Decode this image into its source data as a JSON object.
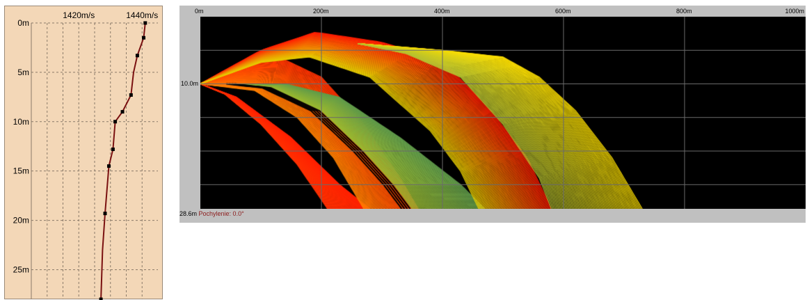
{
  "chart_data": [
    {
      "type": "line",
      "name": "sound-speed-profile",
      "x_tick_labels": [
        "1420m/s",
        "1440m/s"
      ],
      "y_tick_labels": [
        "0m",
        "5m",
        "10m",
        "15m",
        "20m",
        "25m"
      ],
      "xlim": [
        1405,
        1445
      ],
      "ylim": [
        0,
        28
      ],
      "grid": true,
      "line_color": "#7a1010",
      "marker_color": "#000000",
      "points": [
        {
          "depth": 0.0,
          "speed": 1441.0
        },
        {
          "depth": 1.5,
          "speed": 1440.5
        },
        {
          "depth": 3.3,
          "speed": 1438.5
        },
        {
          "depth": 5.0,
          "speed": 1437.3
        },
        {
          "depth": 7.3,
          "speed": 1436.5
        },
        {
          "depth": 9.0,
          "speed": 1433.8
        },
        {
          "depth": 10.0,
          "speed": 1431.5
        },
        {
          "depth": 12.8,
          "speed": 1430.8
        },
        {
          "depth": 14.5,
          "speed": 1429.5
        },
        {
          "depth": 19.3,
          "speed": 1428.3
        },
        {
          "depth": 23.0,
          "speed": 1427.5
        },
        {
          "depth": 28.0,
          "speed": 1427.0
        }
      ],
      "markers": [
        {
          "depth": 0.0,
          "speed": 1441.0
        },
        {
          "depth": 1.5,
          "speed": 1440.5
        },
        {
          "depth": 3.3,
          "speed": 1438.5
        },
        {
          "depth": 7.3,
          "speed": 1436.5
        },
        {
          "depth": 9.0,
          "speed": 1433.8
        },
        {
          "depth": 10.0,
          "speed": 1431.5
        },
        {
          "depth": 12.8,
          "speed": 1430.8
        },
        {
          "depth": 14.5,
          "speed": 1429.5
        },
        {
          "depth": 19.3,
          "speed": 1428.3
        },
        {
          "depth": 28.0,
          "speed": 1427.0
        }
      ]
    },
    {
      "type": "area",
      "name": "ray-trace",
      "x_tick_labels": [
        "0m",
        "200m",
        "400m",
        "600m",
        "800m",
        "1000m"
      ],
      "xlim": [
        0,
        1000
      ],
      "ylim": [
        0,
        28.6
      ],
      "y_gridlines": [
        5,
        10,
        15,
        20,
        25
      ],
      "source_label": "10.0m",
      "source_depth": 10.0,
      "background": "#000000",
      "ray_fans": [
        {
          "color_from": "#ff2000",
          "color_to": "#ff3000",
          "apex_range": 0,
          "apex_depth": 10.0,
          "upper_edge": [
            [
              0,
              10
            ],
            [
              60,
              12
            ],
            [
              150,
              18
            ],
            [
              230,
              25
            ],
            [
              280,
              28.6
            ]
          ],
          "lower_edge": [
            [
              0,
              10
            ],
            [
              40,
              11.5
            ],
            [
              100,
              16
            ],
            [
              160,
              22
            ],
            [
              210,
              28.6
            ]
          ]
        },
        {
          "color_from": "#ff3000",
          "color_to": "#ff8000",
          "apex_range": 0,
          "apex_depth": 10.0,
          "upper_edge": [
            [
              0,
              10
            ],
            [
              60,
              7
            ],
            [
              130,
              6
            ],
            [
              200,
              9
            ],
            [
              270,
              16
            ],
            [
              330,
              24
            ],
            [
              360,
              28.6
            ]
          ],
          "lower_edge": [
            [
              0,
              10
            ],
            [
              90,
              11
            ],
            [
              160,
              15
            ],
            [
              220,
              21
            ],
            [
              270,
              28.6
            ]
          ]
        },
        {
          "color_from": "#5f9a4a",
          "color_to": "#9ab830",
          "apex_range": 60,
          "apex_depth": 10.0,
          "upper_edge": [
            [
              60,
              10
            ],
            [
              140,
              10
            ],
            [
              230,
              12
            ],
            [
              330,
              18
            ],
            [
              430,
              25
            ],
            [
              470,
              28.6
            ]
          ],
          "lower_edge": [
            [
              60,
              10
            ],
            [
              120,
              10.6
            ],
            [
              200,
              14
            ],
            [
              270,
              20
            ],
            [
              320,
              25
            ],
            [
              350,
              28.6
            ]
          ]
        },
        {
          "color_from": "#ff1a00",
          "color_to": "#e6cc00",
          "apex_range": 0,
          "apex_depth": 10.0,
          "upper_edge": [
            [
              0,
              10
            ],
            [
              100,
              5
            ],
            [
              190,
              2.3
            ],
            [
              300,
              3.8
            ],
            [
              400,
              6.5
            ],
            [
              480,
              14
            ],
            [
              540,
              21
            ],
            [
              580,
              28.6
            ]
          ],
          "lower_edge": [
            [
              0,
              10
            ],
            [
              100,
              6.8
            ],
            [
              180,
              6
            ],
            [
              280,
              9
            ],
            [
              380,
              17
            ],
            [
              430,
              23
            ],
            [
              460,
              28.6
            ]
          ]
        },
        {
          "color_from": "#ffe000",
          "color_to": "#b5c030",
          "apex_range": 260,
          "apex_depth": 4.0,
          "upper_edge": [
            [
              260,
              4
            ],
            [
              400,
              5
            ],
            [
              500,
              6
            ],
            [
              560,
              9
            ],
            [
              620,
              14
            ],
            [
              680,
              21
            ],
            [
              730,
              28.6
            ]
          ],
          "lower_edge": [
            [
              260,
              4
            ],
            [
              340,
              5.5
            ],
            [
              430,
              9
            ],
            [
              500,
              16
            ],
            [
              560,
              24
            ],
            [
              580,
              28.6
            ]
          ]
        }
      ]
    }
  ],
  "status": {
    "depth": "28.6m",
    "tilt": "Pochylenie: 0.0°"
  }
}
